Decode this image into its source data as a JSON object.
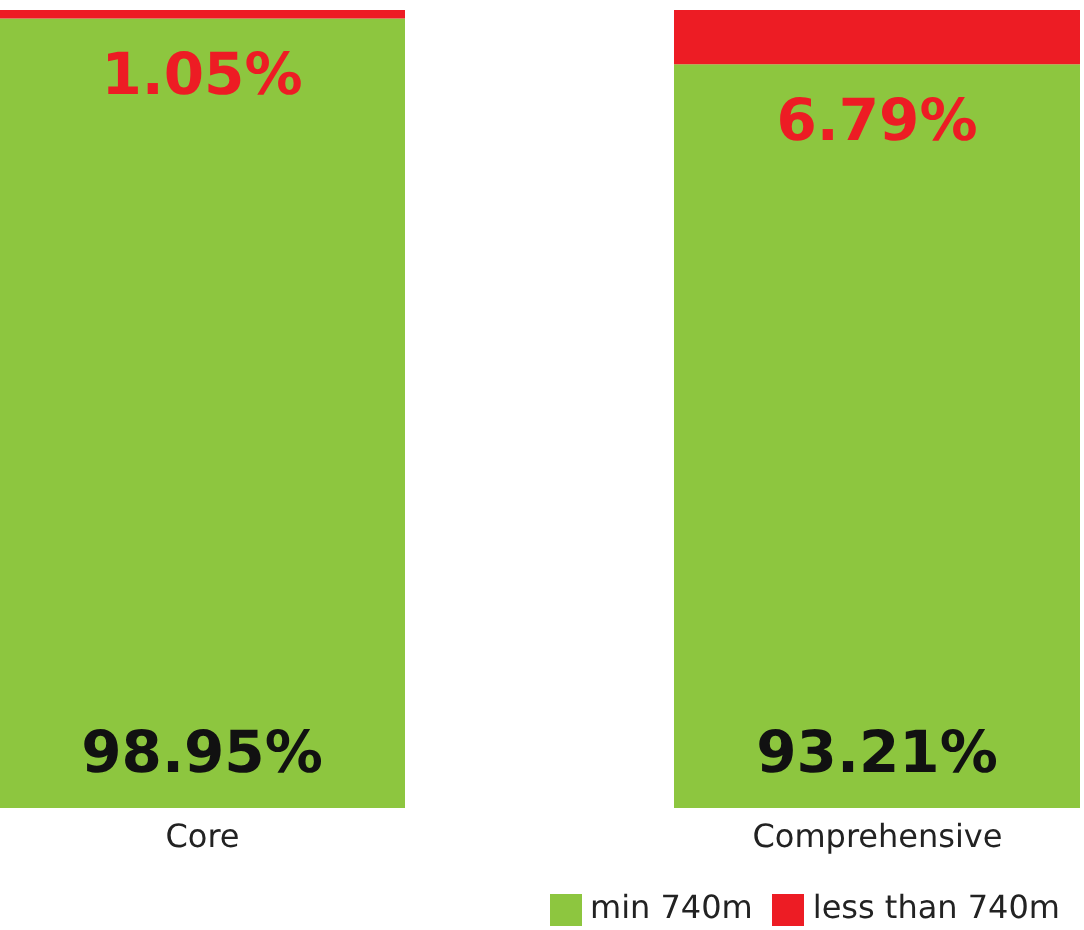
{
  "chart_data": {
    "type": "bar",
    "stacked": true,
    "categories": [
      "Core",
      "Comprehensive"
    ],
    "series": [
      {
        "name": "min 740m",
        "color": "#8dc63f",
        "values": [
          98.95,
          93.21
        ],
        "value_labels": [
          "98.95%",
          "93.21%"
        ]
      },
      {
        "name": "less than 740m",
        "color": "#ed1c24",
        "values": [
          1.05,
          6.79
        ],
        "value_labels": [
          "1.05%",
          "6.79%"
        ]
      }
    ],
    "legend": "bottom right",
    "grid": false
  }
}
